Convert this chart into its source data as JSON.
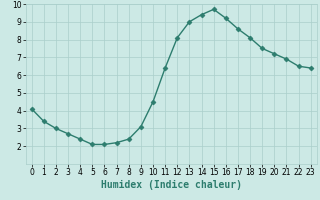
{
  "x": [
    0,
    1,
    2,
    3,
    4,
    5,
    6,
    7,
    8,
    9,
    10,
    11,
    12,
    13,
    14,
    15,
    16,
    17,
    18,
    19,
    20,
    21,
    22,
    23
  ],
  "y": [
    4.1,
    3.4,
    3.0,
    2.7,
    2.4,
    2.1,
    2.1,
    2.2,
    2.4,
    3.1,
    4.5,
    6.4,
    8.1,
    9.0,
    9.4,
    9.7,
    9.2,
    8.6,
    8.1,
    7.5,
    7.2,
    6.9,
    6.5,
    6.4
  ],
  "line_color": "#2d7d6e",
  "marker": "D",
  "marker_size": 2.5,
  "bg_color": "#cce9e5",
  "grid_color": "#aacfcb",
  "xlabel": "Humidex (Indice chaleur)",
  "xlim": [
    -0.5,
    23.5
  ],
  "ylim": [
    1,
    10
  ],
  "yticks": [
    2,
    3,
    4,
    5,
    6,
    7,
    8,
    9,
    10
  ],
  "xticks": [
    0,
    1,
    2,
    3,
    4,
    5,
    6,
    7,
    8,
    9,
    10,
    11,
    12,
    13,
    14,
    15,
    16,
    17,
    18,
    19,
    20,
    21,
    22,
    23
  ],
  "tick_fontsize": 5.5,
  "xlabel_fontsize": 7,
  "linewidth": 1.0
}
